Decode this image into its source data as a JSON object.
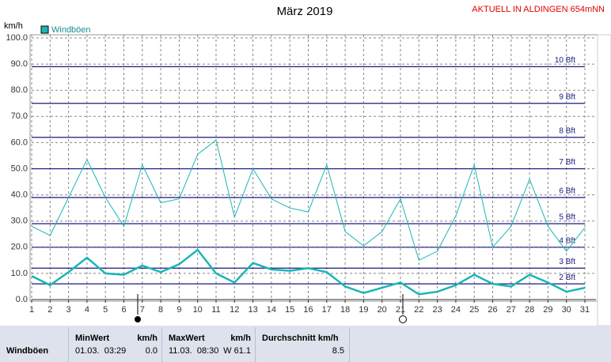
{
  "chart_data": {
    "type": "line",
    "title": "März 2019",
    "station": "AKTUELL IN ALDINGEN 654mNN",
    "y_unit": "km/h",
    "x": [
      1,
      2,
      3,
      4,
      5,
      6,
      7,
      8,
      9,
      10,
      11,
      12,
      13,
      14,
      15,
      16,
      17,
      18,
      19,
      20,
      21,
      22,
      23,
      24,
      25,
      26,
      27,
      28,
      29,
      30,
      31
    ],
    "series": [
      {
        "name": "Windböen",
        "color": "#1ab6b6",
        "width": 1,
        "values": [
          28,
          24.5,
          39,
          53.5,
          39,
          28,
          51.5,
          37,
          38.5,
          55.5,
          61,
          31.5,
          50,
          38.5,
          35,
          33.5,
          51.5,
          26,
          20.5,
          26,
          38.5,
          15,
          18.5,
          32,
          51.5,
          20,
          28,
          46,
          28,
          18.5,
          27.5
        ]
      },
      {
        "color": "#1ab6b6",
        "width": 2.5,
        "values": [
          9,
          5.5,
          10.5,
          16,
          10,
          9.5,
          13,
          10.5,
          13.5,
          19,
          10,
          6.5,
          14,
          11.5,
          11,
          12,
          10.5,
          5,
          2.5,
          4.5,
          6.5,
          2,
          3,
          5.5,
          9.5,
          6,
          5,
          9.5,
          6.5,
          3,
          4.5
        ]
      }
    ],
    "xlim": [
      1,
      31
    ],
    "xticks": [
      1,
      2,
      3,
      4,
      5,
      6,
      7,
      8,
      9,
      10,
      11,
      12,
      13,
      14,
      15,
      16,
      17,
      18,
      19,
      20,
      21,
      22,
      23,
      24,
      25,
      26,
      27,
      28,
      29,
      30,
      31
    ],
    "ylim": [
      0,
      100
    ],
    "yticks": [
      {
        "value": 0,
        "label": "0.0"
      },
      {
        "value": 10,
        "label": "10.0"
      },
      {
        "value": 20,
        "label": "20.0"
      },
      {
        "value": 30,
        "label": "30.0"
      },
      {
        "value": 40,
        "label": "40.0"
      },
      {
        "value": 50,
        "label": "50.0"
      },
      {
        "value": 60,
        "label": "60.0"
      },
      {
        "value": 70,
        "label": "70.0"
      },
      {
        "value": 80,
        "label": "80.0"
      },
      {
        "value": 90,
        "label": "90.0"
      },
      {
        "value": 100,
        "label": "100.0"
      }
    ],
    "grid": true,
    "bft_lines": [
      {
        "value": 6,
        "label": "2 Bft"
      },
      {
        "value": 12,
        "label": "3 Bft"
      },
      {
        "value": 20,
        "label": "4 Bft"
      },
      {
        "value": 29,
        "label": "5 Bft"
      },
      {
        "value": 39,
        "label": "6 Bft"
      },
      {
        "value": 50,
        "label": "7 Bft"
      },
      {
        "value": 62,
        "label": "8 Bft"
      },
      {
        "value": 75,
        "label": "9 Bft"
      },
      {
        "value": 89,
        "label": "10 Bft"
      }
    ]
  },
  "stats": {
    "row_label": "Windböen",
    "min": {
      "header": "MinWert",
      "unit": "km/h",
      "time": "01.03.  03:29",
      "value": "0.0"
    },
    "max": {
      "header": "MaxWert",
      "unit": "km/h",
      "time": "11.03.  08:30",
      "value": "W 61.1"
    },
    "avg": {
      "header": "Durchschnitt km/h",
      "value": "8.5"
    }
  }
}
